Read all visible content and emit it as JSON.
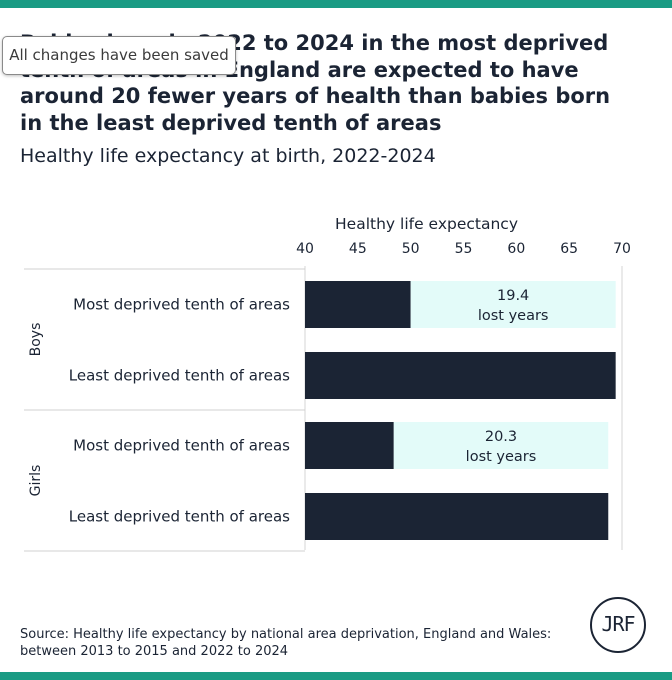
{
  "toast": {
    "text": "All changes have been saved"
  },
  "header": {
    "title": "Babies born in 2022 to 2024 in the most deprived tenth of areas in England are expected to have around 20 fewer years of health than babies born in the least deprived tenth of areas",
    "subtitle": "Healthy life expectancy at birth, 2022-2024"
  },
  "source": "Source: Healthy life expectancy by national area deprivation, England and Wales: between 2013 to 2015 and 2022 to 2024",
  "logo": {
    "text": "JRF"
  },
  "colors": {
    "bar": "#1b2434",
    "gap": "#e3fbf9",
    "accent": "#1a9b84"
  },
  "chart_data": {
    "type": "bar",
    "orientation": "horizontal",
    "xlabel": "Healthy life expectancy",
    "xlim": [
      40,
      70
    ],
    "xticks": [
      40,
      45,
      50,
      55,
      60,
      65,
      70
    ],
    "groups": [
      {
        "name": "Boys",
        "rows": [
          {
            "label": "Most deprived tenth of areas",
            "value": 50.0,
            "gap_end": 69.4,
            "gap_label": [
              "19.4",
              "lost years"
            ]
          },
          {
            "label": "Least deprived tenth of areas",
            "value": 69.4
          }
        ]
      },
      {
        "name": "Girls",
        "rows": [
          {
            "label": "Most deprived tenth of areas",
            "value": 48.4,
            "gap_end": 68.7,
            "gap_label": [
              "20.3",
              "lost years"
            ]
          },
          {
            "label": "Least deprived tenth of areas",
            "value": 68.7
          }
        ]
      }
    ]
  }
}
